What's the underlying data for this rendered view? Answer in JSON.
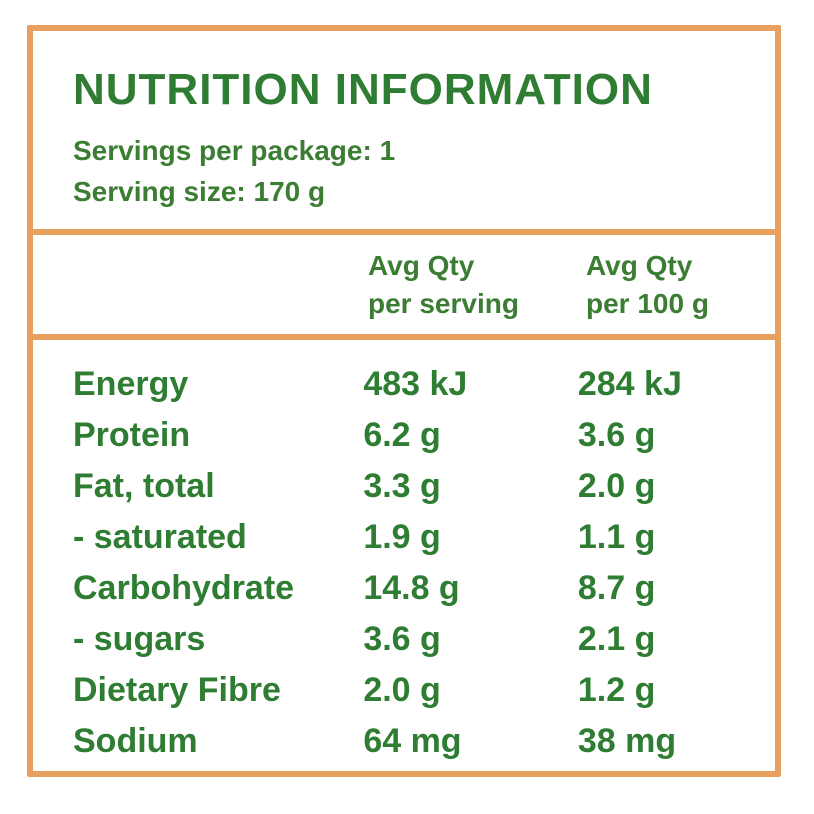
{
  "panel": {
    "title": "NUTRITION INFORMATION",
    "servings_per_package": "Servings per package: 1",
    "serving_size": "Serving size: 170 g",
    "border_color": "#e8a05e",
    "text_color": "#2e7d32"
  },
  "columns": {
    "per_serving": {
      "line1": "Avg Qty",
      "line2": "per serving"
    },
    "per_100g": {
      "line1": "Avg Qty",
      "line2": "per 100 g"
    }
  },
  "rows": [
    {
      "label": "Energy",
      "per_serving": "483 kJ",
      "per_100g": "284 kJ"
    },
    {
      "label": "Protein",
      "per_serving": "6.2 g",
      "per_100g": "3.6 g"
    },
    {
      "label": "Fat, total",
      "per_serving": "3.3 g",
      "per_100g": "2.0 g"
    },
    {
      "label": "- saturated",
      "per_serving": "1.9 g",
      "per_100g": "1.1 g"
    },
    {
      "label": "Carbohydrate",
      "per_serving": "14.8 g",
      "per_100g": "8.7 g"
    },
    {
      "label": "- sugars",
      "per_serving": "3.6 g",
      "per_100g": "2.1 g"
    },
    {
      "label": "Dietary Fibre",
      "per_serving": "2.0 g",
      "per_100g": "1.2 g"
    },
    {
      "label": "Sodium",
      "per_serving": "64 mg",
      "per_100g": "38 mg"
    }
  ]
}
